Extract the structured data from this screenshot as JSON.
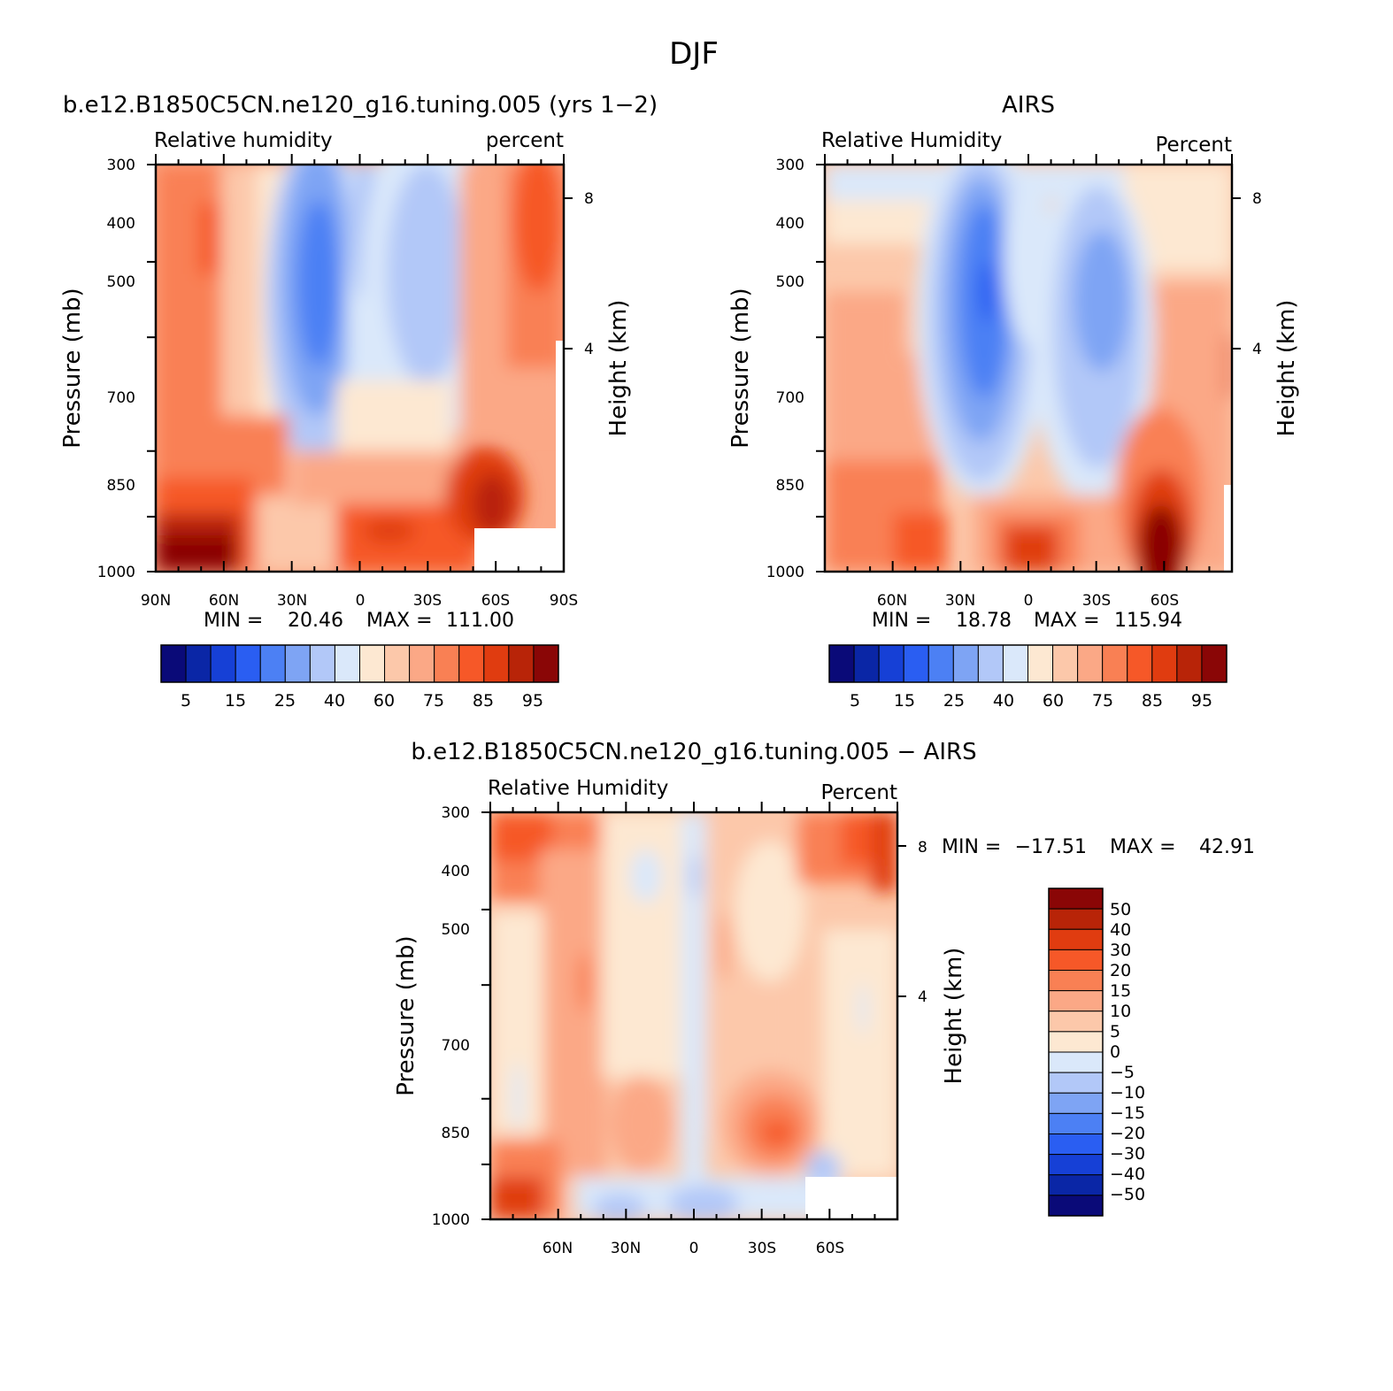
{
  "figure_title": "DJF",
  "chart_data": [
    {
      "type": "heatmap",
      "title": "b.e12.B1850C5CN.ne120_g16.tuning.005 (yrs 1−2)",
      "left_label": "Relative humidity",
      "right_label": "percent",
      "ylabel": "Pressure (mb)",
      "ylabel_right": "Height (km)",
      "x_ticks": [
        "90N",
        "60N",
        "30N",
        "0",
        "30S",
        "60S",
        "90S"
      ],
      "y_ticks": [
        "300",
        "400",
        "500",
        "700",
        "850",
        "1000"
      ],
      "y_right_ticks": [
        "8",
        "4"
      ],
      "x_range": [
        90,
        -90
      ],
      "y_range": [
        300,
        1000
      ],
      "stats": {
        "min_label": "MIN =",
        "min": "20.46",
        "max_label": "MAX =",
        "max": "111.00"
      },
      "colorbar_labels": [
        "5",
        "15",
        "25",
        "40",
        "60",
        "75",
        "85",
        "95"
      ]
    },
    {
      "type": "heatmap",
      "title": "AIRS",
      "left_label": "Relative Humidity",
      "right_label": "Percent",
      "ylabel": "Pressure (mb)",
      "ylabel_right": "Height (km)",
      "x_ticks": [
        "60N",
        "30N",
        "0",
        "30S",
        "60S"
      ],
      "y_ticks": [
        "300",
        "400",
        "500",
        "700",
        "850",
        "1000"
      ],
      "y_right_ticks": [
        "8",
        "4"
      ],
      "x_range": [
        90,
        -90
      ],
      "y_range": [
        300,
        1000
      ],
      "stats": {
        "min_label": "MIN =",
        "min": "18.78",
        "max_label": "MAX =",
        "max": "115.94"
      },
      "colorbar_labels": [
        "5",
        "15",
        "25",
        "40",
        "60",
        "75",
        "85",
        "95"
      ]
    },
    {
      "type": "heatmap",
      "title": "b.e12.B1850C5CN.ne120_g16.tuning.005 − AIRS",
      "left_label": "Relative Humidity",
      "right_label": "Percent",
      "ylabel": "Pressure (mb)",
      "ylabel_right": "Height (km)",
      "x_ticks": [
        "60N",
        "30N",
        "0",
        "30S",
        "60S"
      ],
      "y_ticks": [
        "300",
        "400",
        "500",
        "700",
        "850",
        "1000"
      ],
      "y_right_ticks": [
        "8",
        "4"
      ],
      "x_range": [
        90,
        -90
      ],
      "y_range": [
        300,
        1000
      ],
      "stats": {
        "min_label": "MIN =",
        "min": "−17.51",
        "max_label": "MAX =",
        "max": "42.91"
      },
      "colorbar_labels": [
        "50",
        "40",
        "30",
        "20",
        "15",
        "10",
        "5",
        "0",
        "−5",
        "−10",
        "−15",
        "−20",
        "−30",
        "−40",
        "−50"
      ]
    }
  ],
  "colors": {
    "ramp16": [
      "#0a0a78",
      "#0a26a6",
      "#1640d6",
      "#2a5ef2",
      "#4c80f4",
      "#7ea4f4",
      "#b2c8f8",
      "#dae8fa",
      "#fde8d2",
      "#fcc8aa",
      "#fba886",
      "#f98054",
      "#f65828",
      "#e03c10",
      "#b82408",
      "#8a0606"
    ]
  }
}
